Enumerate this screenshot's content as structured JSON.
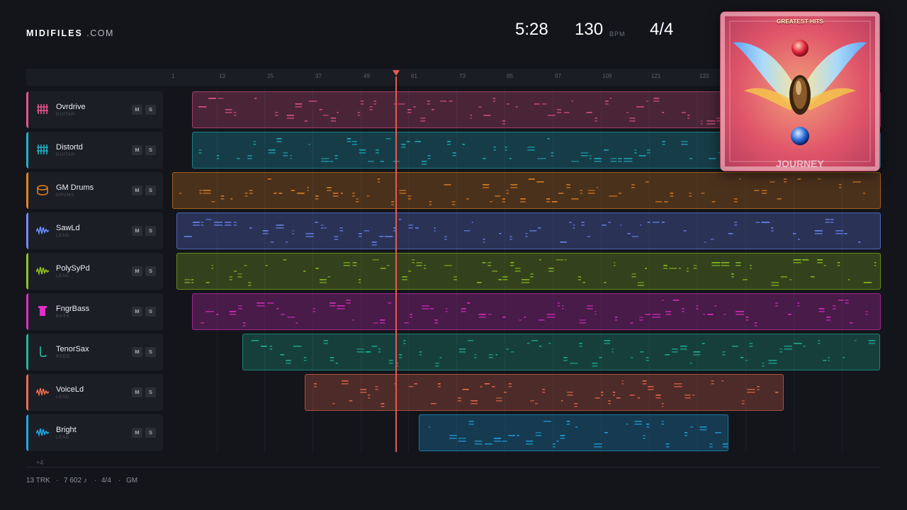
{
  "brand": {
    "bold": "MIDIFILES",
    "domain": ".COM"
  },
  "stats": {
    "time": "5:28",
    "bpm": "130",
    "bpm_unit": "BPM",
    "signature": "4/4"
  },
  "ruler": {
    "ticks": [
      "1",
      "13",
      "25",
      "37",
      "49",
      "61",
      "73",
      "85",
      "97",
      "109",
      "121",
      "133"
    ]
  },
  "tracks": [
    {
      "name": "Ovrdrive",
      "category": "GUITAR",
      "color": "#e8548c",
      "icon": "guitar-grid-icon",
      "mute": "M",
      "solo": "S"
    },
    {
      "name": "Distortd",
      "category": "GUITAR",
      "color": "#1fb2c4",
      "icon": "guitar-grid-icon",
      "mute": "M",
      "solo": "S"
    },
    {
      "name": "GM Drums",
      "category": "DRUMS",
      "color": "#e8821f",
      "icon": "drum-icon",
      "mute": "M",
      "solo": "S"
    },
    {
      "name": "SawLd",
      "category": "LEAD",
      "color": "#6e8cff",
      "icon": "wave-icon",
      "mute": "M",
      "solo": "S"
    },
    {
      "name": "PolySyPd",
      "category": "LEAD",
      "color": "#8fc41f",
      "icon": "wave-icon",
      "mute": "M",
      "solo": "S"
    },
    {
      "name": "FngrBass",
      "category": "BASS",
      "color": "#e02ec8",
      "icon": "bass-amp-icon",
      "mute": "M",
      "solo": "S"
    },
    {
      "name": "TenorSax",
      "category": "REED",
      "color": "#1fb89c",
      "icon": "sax-icon",
      "mute": "M",
      "solo": "S"
    },
    {
      "name": "VoiceLd",
      "category": "LEAD",
      "color": "#f26b4f",
      "icon": "wave-icon",
      "mute": "M",
      "solo": "S"
    },
    {
      "name": "Bright",
      "category": "LEAD",
      "color": "#1ea8e8",
      "icon": "wave-icon",
      "mute": "M",
      "solo": "S"
    }
  ],
  "more_tracks": "+4",
  "footer": {
    "tracks": "13 TRK",
    "notes": "7 602 ♪",
    "signature": "4/4",
    "format": "GM",
    "separator": "·"
  },
  "album": {
    "subtitle": "GREATEST HITS",
    "band": "JOURNEY"
  },
  "colors": {
    "background": "#13151b",
    "playhead": "#e85a4f"
  }
}
